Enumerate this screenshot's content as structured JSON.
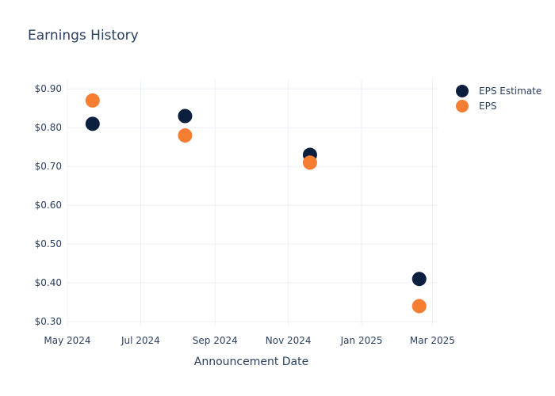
{
  "chart_data": {
    "type": "scatter",
    "title": "Earnings History",
    "xlabel": "Announcement Date",
    "ylabel": "",
    "x_ticks": [
      "2024-05-01",
      "2024-07-01",
      "2024-09-01",
      "2024-11-01",
      "2025-01-01",
      "2025-03-01"
    ],
    "x_tick_labels": [
      "May 2024",
      "Jul 2024",
      "Sep 2024",
      "Nov 2024",
      "Jan 2025",
      "Mar 2025"
    ],
    "xlim": [
      "2024-05-01",
      "2025-03-06"
    ],
    "y_ticks": [
      0.3,
      0.4,
      0.5,
      0.6,
      0.7,
      0.8,
      0.9
    ],
    "y_tick_labels": [
      "$0.30",
      "$0.40",
      "$0.50",
      "$0.60",
      "$0.70",
      "$0.80",
      "$0.90"
    ],
    "ylim": [
      0.29,
      0.925
    ],
    "grid": true,
    "legend_position": "top-right",
    "series": [
      {
        "name": "EPS Estimate",
        "color": "#0d1f3f",
        "points": [
          {
            "x": "2024-05-22",
            "y": 0.81
          },
          {
            "x": "2024-08-07",
            "y": 0.83
          },
          {
            "x": "2024-11-19",
            "y": 0.73
          },
          {
            "x": "2025-02-18",
            "y": 0.41
          }
        ]
      },
      {
        "name": "EPS",
        "color": "#f57e33",
        "points": [
          {
            "x": "2024-05-22",
            "y": 0.87
          },
          {
            "x": "2024-08-07",
            "y": 0.78
          },
          {
            "x": "2024-11-19",
            "y": 0.71
          },
          {
            "x": "2025-02-18",
            "y": 0.34
          }
        ]
      }
    ]
  }
}
